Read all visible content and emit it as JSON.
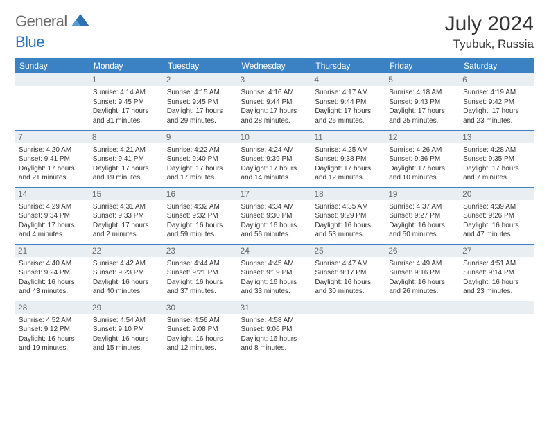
{
  "brand": {
    "part1": "General",
    "part2": "Blue"
  },
  "title": "July 2024",
  "location": "Tyubuk, Russia",
  "colors": {
    "header_bg": "#3b82c4",
    "header_fg": "#ffffff",
    "daynum_bg": "#e9eef2",
    "daynum_fg": "#6b6b6b",
    "rule": "#3b82c4",
    "brand_gray": "#6b6b6b",
    "brand_blue": "#2d72b5"
  },
  "weekdays": [
    "Sunday",
    "Monday",
    "Tuesday",
    "Wednesday",
    "Thursday",
    "Friday",
    "Saturday"
  ],
  "weeks": [
    [
      null,
      {
        "n": "1",
        "sr": "Sunrise: 4:14 AM",
        "ss": "Sunset: 9:45 PM",
        "d1": "Daylight: 17 hours",
        "d2": "and 31 minutes."
      },
      {
        "n": "2",
        "sr": "Sunrise: 4:15 AM",
        "ss": "Sunset: 9:45 PM",
        "d1": "Daylight: 17 hours",
        "d2": "and 29 minutes."
      },
      {
        "n": "3",
        "sr": "Sunrise: 4:16 AM",
        "ss": "Sunset: 9:44 PM",
        "d1": "Daylight: 17 hours",
        "d2": "and 28 minutes."
      },
      {
        "n": "4",
        "sr": "Sunrise: 4:17 AM",
        "ss": "Sunset: 9:44 PM",
        "d1": "Daylight: 17 hours",
        "d2": "and 26 minutes."
      },
      {
        "n": "5",
        "sr": "Sunrise: 4:18 AM",
        "ss": "Sunset: 9:43 PM",
        "d1": "Daylight: 17 hours",
        "d2": "and 25 minutes."
      },
      {
        "n": "6",
        "sr": "Sunrise: 4:19 AM",
        "ss": "Sunset: 9:42 PM",
        "d1": "Daylight: 17 hours",
        "d2": "and 23 minutes."
      }
    ],
    [
      {
        "n": "7",
        "sr": "Sunrise: 4:20 AM",
        "ss": "Sunset: 9:41 PM",
        "d1": "Daylight: 17 hours",
        "d2": "and 21 minutes."
      },
      {
        "n": "8",
        "sr": "Sunrise: 4:21 AM",
        "ss": "Sunset: 9:41 PM",
        "d1": "Daylight: 17 hours",
        "d2": "and 19 minutes."
      },
      {
        "n": "9",
        "sr": "Sunrise: 4:22 AM",
        "ss": "Sunset: 9:40 PM",
        "d1": "Daylight: 17 hours",
        "d2": "and 17 minutes."
      },
      {
        "n": "10",
        "sr": "Sunrise: 4:24 AM",
        "ss": "Sunset: 9:39 PM",
        "d1": "Daylight: 17 hours",
        "d2": "and 14 minutes."
      },
      {
        "n": "11",
        "sr": "Sunrise: 4:25 AM",
        "ss": "Sunset: 9:38 PM",
        "d1": "Daylight: 17 hours",
        "d2": "and 12 minutes."
      },
      {
        "n": "12",
        "sr": "Sunrise: 4:26 AM",
        "ss": "Sunset: 9:36 PM",
        "d1": "Daylight: 17 hours",
        "d2": "and 10 minutes."
      },
      {
        "n": "13",
        "sr": "Sunrise: 4:28 AM",
        "ss": "Sunset: 9:35 PM",
        "d1": "Daylight: 17 hours",
        "d2": "and 7 minutes."
      }
    ],
    [
      {
        "n": "14",
        "sr": "Sunrise: 4:29 AM",
        "ss": "Sunset: 9:34 PM",
        "d1": "Daylight: 17 hours",
        "d2": "and 4 minutes."
      },
      {
        "n": "15",
        "sr": "Sunrise: 4:31 AM",
        "ss": "Sunset: 9:33 PM",
        "d1": "Daylight: 17 hours",
        "d2": "and 2 minutes."
      },
      {
        "n": "16",
        "sr": "Sunrise: 4:32 AM",
        "ss": "Sunset: 9:32 PM",
        "d1": "Daylight: 16 hours",
        "d2": "and 59 minutes."
      },
      {
        "n": "17",
        "sr": "Sunrise: 4:34 AM",
        "ss": "Sunset: 9:30 PM",
        "d1": "Daylight: 16 hours",
        "d2": "and 56 minutes."
      },
      {
        "n": "18",
        "sr": "Sunrise: 4:35 AM",
        "ss": "Sunset: 9:29 PM",
        "d1": "Daylight: 16 hours",
        "d2": "and 53 minutes."
      },
      {
        "n": "19",
        "sr": "Sunrise: 4:37 AM",
        "ss": "Sunset: 9:27 PM",
        "d1": "Daylight: 16 hours",
        "d2": "and 50 minutes."
      },
      {
        "n": "20",
        "sr": "Sunrise: 4:39 AM",
        "ss": "Sunset: 9:26 PM",
        "d1": "Daylight: 16 hours",
        "d2": "and 47 minutes."
      }
    ],
    [
      {
        "n": "21",
        "sr": "Sunrise: 4:40 AM",
        "ss": "Sunset: 9:24 PM",
        "d1": "Daylight: 16 hours",
        "d2": "and 43 minutes."
      },
      {
        "n": "22",
        "sr": "Sunrise: 4:42 AM",
        "ss": "Sunset: 9:23 PM",
        "d1": "Daylight: 16 hours",
        "d2": "and 40 minutes."
      },
      {
        "n": "23",
        "sr": "Sunrise: 4:44 AM",
        "ss": "Sunset: 9:21 PM",
        "d1": "Daylight: 16 hours",
        "d2": "and 37 minutes."
      },
      {
        "n": "24",
        "sr": "Sunrise: 4:45 AM",
        "ss": "Sunset: 9:19 PM",
        "d1": "Daylight: 16 hours",
        "d2": "and 33 minutes."
      },
      {
        "n": "25",
        "sr": "Sunrise: 4:47 AM",
        "ss": "Sunset: 9:17 PM",
        "d1": "Daylight: 16 hours",
        "d2": "and 30 minutes."
      },
      {
        "n": "26",
        "sr": "Sunrise: 4:49 AM",
        "ss": "Sunset: 9:16 PM",
        "d1": "Daylight: 16 hours",
        "d2": "and 26 minutes."
      },
      {
        "n": "27",
        "sr": "Sunrise: 4:51 AM",
        "ss": "Sunset: 9:14 PM",
        "d1": "Daylight: 16 hours",
        "d2": "and 23 minutes."
      }
    ],
    [
      {
        "n": "28",
        "sr": "Sunrise: 4:52 AM",
        "ss": "Sunset: 9:12 PM",
        "d1": "Daylight: 16 hours",
        "d2": "and 19 minutes."
      },
      {
        "n": "29",
        "sr": "Sunrise: 4:54 AM",
        "ss": "Sunset: 9:10 PM",
        "d1": "Daylight: 16 hours",
        "d2": "and 15 minutes."
      },
      {
        "n": "30",
        "sr": "Sunrise: 4:56 AM",
        "ss": "Sunset: 9:08 PM",
        "d1": "Daylight: 16 hours",
        "d2": "and 12 minutes."
      },
      {
        "n": "31",
        "sr": "Sunrise: 4:58 AM",
        "ss": "Sunset: 9:06 PM",
        "d1": "Daylight: 16 hours",
        "d2": "and 8 minutes."
      },
      null,
      null,
      null
    ]
  ]
}
